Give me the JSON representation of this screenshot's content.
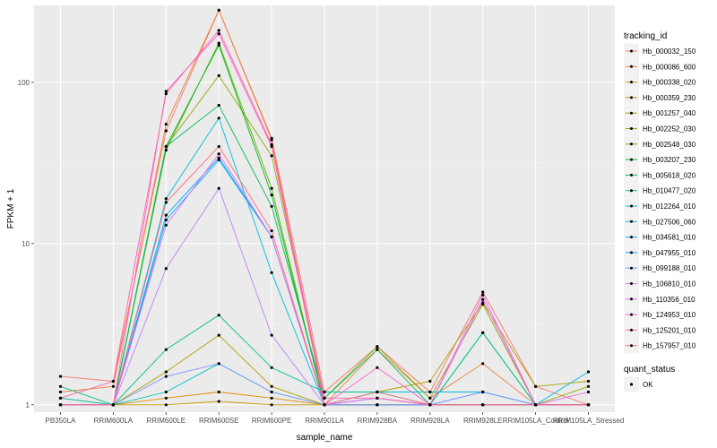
{
  "chart_data": {
    "type": "line",
    "title": "",
    "xlabel": "sample_name",
    "ylabel": "FPKM + 1",
    "yscale": "log10",
    "ylim": [
      0.9,
      300
    ],
    "yticks": [
      1,
      10,
      100
    ],
    "ytick_labels": [
      "1",
      "10",
      "100"
    ],
    "grid": true,
    "legend_position": "right",
    "categories": [
      "PB350LA",
      "RRIM600LA",
      "RRIM600LE",
      "RRIM600SE",
      "RRIM600PE",
      "RRIM901LA",
      "RRIM928BA",
      "RRIM928LA",
      "RRIM928LE",
      "RRIM105LA_Control",
      "RRIM105LA_Stressed"
    ],
    "legend_title": "tracking_id",
    "series": [
      {
        "name": "Hb_000032_150",
        "color": "#F8766D",
        "values": [
          1.5,
          1.4,
          50,
          280,
          45,
          1.2,
          2.3,
          1.2,
          5.0,
          1.3,
          1.0
        ]
      },
      {
        "name": "Hb_000086_600",
        "color": "#EC8239",
        "values": [
          1.2,
          1.3,
          55,
          280,
          44,
          1.0,
          2.2,
          1.1,
          1.8,
          1.0,
          1.0
        ]
      },
      {
        "name": "Hb_000338_020",
        "color": "#DB8E00",
        "values": [
          1.1,
          1.0,
          1.1,
          1.2,
          1.1,
          1.0,
          1.0,
          1.0,
          1.0,
          1.0,
          1.0
        ]
      },
      {
        "name": "Hb_000359_230",
        "color": "#C79800",
        "values": [
          1.0,
          1.0,
          1.0,
          1.05,
          1.0,
          1.0,
          1.0,
          1.0,
          1.0,
          1.0,
          1.0
        ]
      },
      {
        "name": "Hb_001257_040",
        "color": "#AEA200",
        "values": [
          1.0,
          1.0,
          1.6,
          2.7,
          1.3,
          1.0,
          1.2,
          1.4,
          4.3,
          1.3,
          1.4
        ]
      },
      {
        "name": "Hb_002252_030",
        "color": "#8FAA00",
        "values": [
          1.0,
          1.0,
          40,
          110,
          35,
          1.1,
          2.3,
          1.1,
          4.2,
          1.0,
          1.3
        ]
      },
      {
        "name": "Hb_002548_030",
        "color": "#64B200",
        "values": [
          1.0,
          1.0,
          38,
          175,
          22,
          1.0,
          1.0,
          1.0,
          1.0,
          1.0,
          1.0
        ]
      },
      {
        "name": "Hb_003207_230",
        "color": "#00B81B",
        "values": [
          1.0,
          1.0,
          40,
          170,
          20,
          1.0,
          1.0,
          1.0,
          1.0,
          1.0,
          1.0
        ]
      },
      {
        "name": "Hb_005618_020",
        "color": "#00BD5C",
        "values": [
          1.0,
          1.0,
          40,
          72,
          17,
          1.1,
          2.2,
          1.0,
          2.8,
          1.0,
          1.0
        ]
      },
      {
        "name": "Hb_010477_020",
        "color": "#00C08E",
        "values": [
          1.3,
          1.0,
          2.2,
          3.6,
          1.7,
          1.2,
          1.2,
          1.0,
          2.8,
          1.0,
          1.0
        ]
      },
      {
        "name": "Hb_012264_010",
        "color": "#00C1B7",
        "values": [
          1.1,
          1.0,
          1.2,
          1.8,
          1.2,
          1.0,
          1.0,
          1.0,
          1.0,
          1.0,
          1.0
        ]
      },
      {
        "name": "Hb_027506_060",
        "color": "#00BDDC",
        "values": [
          1.0,
          1.0,
          19,
          60,
          6.6,
          1.0,
          1.2,
          1.2,
          1.2,
          1.0,
          1.6
        ]
      },
      {
        "name": "Hb_034581_010",
        "color": "#00B3F2",
        "values": [
          1.0,
          1.0,
          14,
          33,
          11,
          1.0,
          1.0,
          1.0,
          1.0,
          1.0,
          1.0
        ]
      },
      {
        "name": "Hb_047955_010",
        "color": "#00A5FF",
        "values": [
          1.0,
          1.0,
          15,
          34,
          11,
          1.0,
          1.1,
          1.0,
          1.2,
          1.0,
          1.0
        ]
      },
      {
        "name": "Hb_099188_010",
        "color": "#7F96FF",
        "values": [
          1.0,
          1.0,
          1.5,
          1.8,
          1.2,
          1.0,
          1.1,
          1.0,
          1.2,
          1.0,
          1.0
        ]
      },
      {
        "name": "Hb_106810_010",
        "color": "#BB83FF",
        "values": [
          1.0,
          1.0,
          7.0,
          22,
          2.7,
          1.0,
          1.0,
          1.0,
          1.0,
          1.0,
          1.0
        ]
      },
      {
        "name": "Hb_110356_010",
        "color": "#E36EF6",
        "values": [
          1.0,
          1.0,
          13,
          36,
          11,
          1.0,
          1.1,
          1.0,
          4.8,
          1.0,
          1.2
        ]
      },
      {
        "name": "Hb_124953_010",
        "color": "#FA62D4",
        "values": [
          1.0,
          1.0,
          88,
          200,
          40,
          1.0,
          1.7,
          1.0,
          4.5,
          1.0,
          1.0
        ]
      },
      {
        "name": "Hb_125201_010",
        "color": "#FF61A7",
        "values": [
          1.1,
          1.4,
          85,
          210,
          41,
          1.1,
          1.1,
          1.0,
          1.0,
          1.0,
          1.0
        ]
      },
      {
        "name": "Hb_157957_010",
        "color": "#FF6B7A",
        "values": [
          1.0,
          1.0,
          18,
          40,
          12,
          1.0,
          1.2,
          1.0,
          1.0,
          1.0,
          1.0
        ]
      }
    ],
    "shape_legend_title": "quant_status",
    "shape_legend_items": [
      "OK"
    ]
  }
}
